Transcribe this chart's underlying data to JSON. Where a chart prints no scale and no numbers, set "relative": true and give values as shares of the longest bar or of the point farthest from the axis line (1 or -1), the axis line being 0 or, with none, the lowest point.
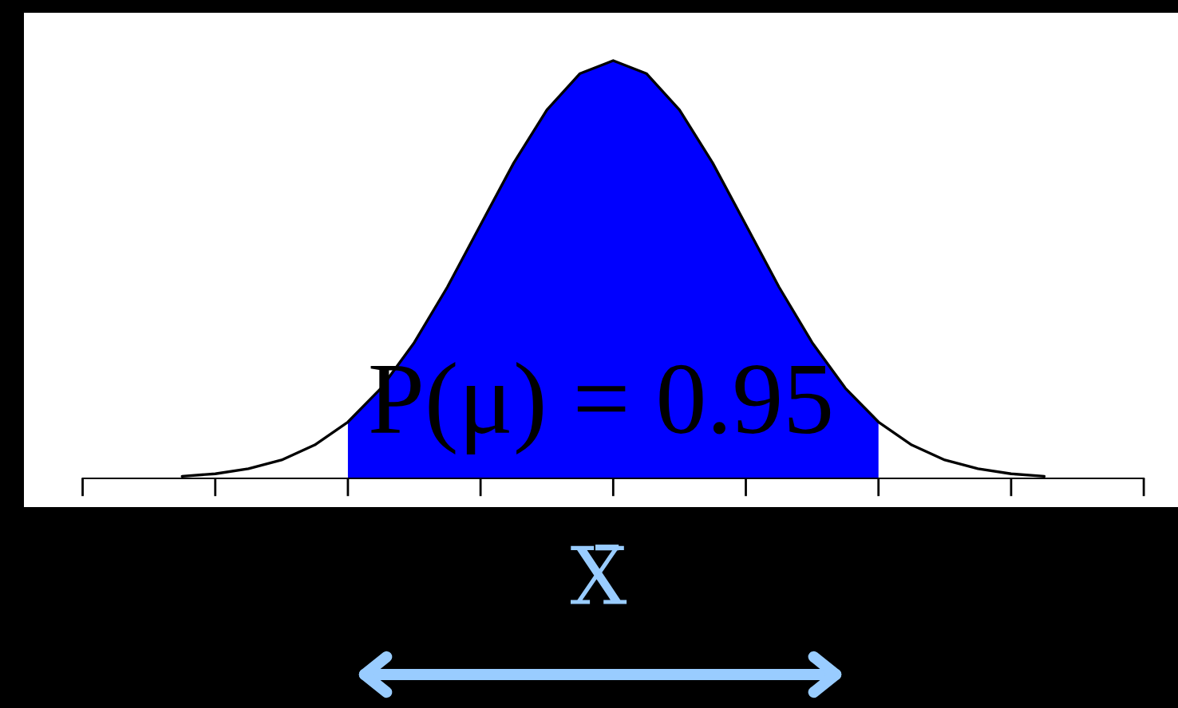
{
  "chart_data": {
    "type": "line",
    "relative": true,
    "xlabel": "X̄",
    "annotations": [
      "P(μ) = 0.95"
    ],
    "categories": [
      null,
      null,
      null,
      null,
      null,
      null,
      null,
      null,
      null,
      null,
      null,
      null,
      null,
      null,
      null,
      null,
      null,
      null,
      null,
      null,
      null,
      null,
      null,
      null,
      null,
      null,
      null
    ],
    "series": [
      {
        "type": "area",
        "color": "#0000ff",
        "values": [
          null,
          null,
          null,
          null,
          null,
          0.135,
          0.216,
          0.325,
          0.458,
          0.607,
          0.755,
          0.882,
          0.969,
          1,
          0.969,
          0.882,
          0.755,
          0.607,
          0.458,
          0.325,
          0.216,
          0.135,
          null,
          null,
          null,
          null,
          null
        ]
      },
      {
        "color": "#000000",
        "values": [
          0.005,
          0.011,
          0.023,
          0.044,
          0.08,
          0.135,
          0.216,
          0.325,
          0.458,
          0.607,
          0.755,
          0.882,
          0.969,
          1,
          0.969,
          0.882,
          0.755,
          0.607,
          0.458,
          0.325,
          0.216,
          0.135,
          0.08,
          0.044,
          0.023,
          0.011,
          0.005
        ]
      }
    ]
  }
}
